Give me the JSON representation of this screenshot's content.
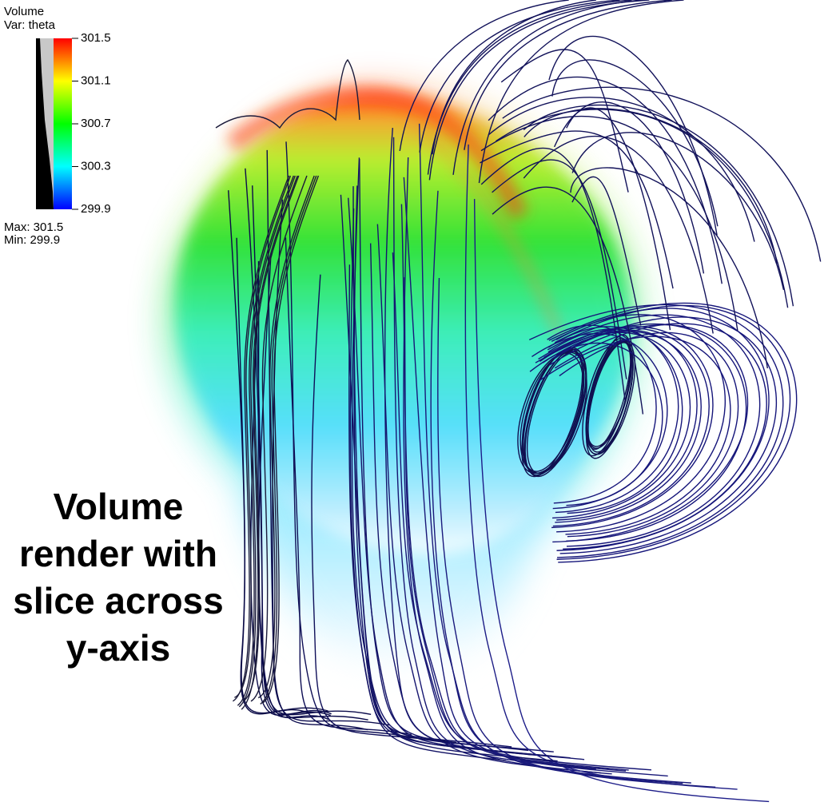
{
  "legend": {
    "title": "Volume",
    "variable": "Var: theta",
    "ticks": [
      "301.5",
      "301.1",
      "300.7",
      "300.3",
      "299.9"
    ],
    "max": "Max: 301.5",
    "min": "Min: 299.9"
  },
  "caption": [
    "Volume",
    "render with",
    "slice across",
    "y-axis"
  ]
}
